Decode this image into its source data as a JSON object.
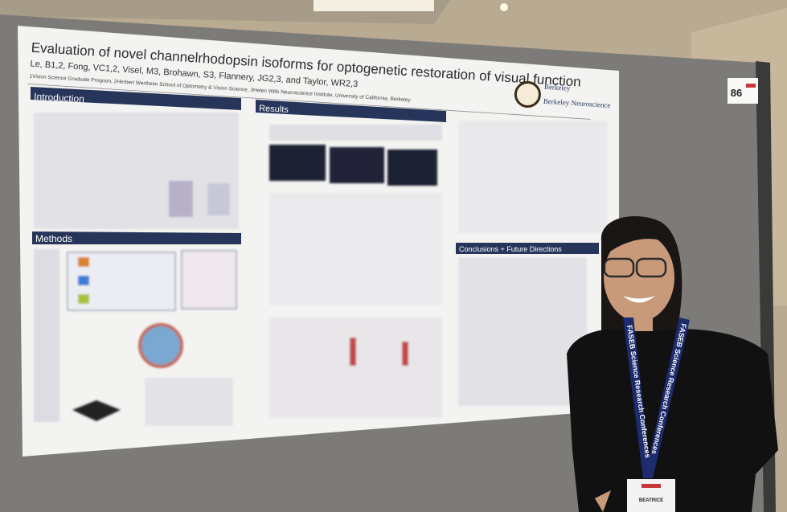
{
  "poster": {
    "title": "Evaluation of novel channelrhodopsin isoforms for optogenetic restoration of visual function",
    "authors": "Le, B1,2, Fong, VC1,2, Visel, M3, Brohawn, S3, Flannery, JG2,3, and Taylor, WR2,3",
    "affiliations": "1Vision Science Graduate Program, 2Herbert Wertheim School of Optometry & Vision Science, 3Helen Wills Neuroscience Institute, University of California, Berkeley",
    "logos": [
      "Berkeley",
      "Berkeley Neuroscience"
    ],
    "sections": [
      "Introduction",
      "Methods",
      "Results",
      "Conclusions + Future Directions"
    ]
  },
  "board_number": "86",
  "lanyard": "FASEB Science Research Conferences",
  "badge_name": "BEATRICE"
}
